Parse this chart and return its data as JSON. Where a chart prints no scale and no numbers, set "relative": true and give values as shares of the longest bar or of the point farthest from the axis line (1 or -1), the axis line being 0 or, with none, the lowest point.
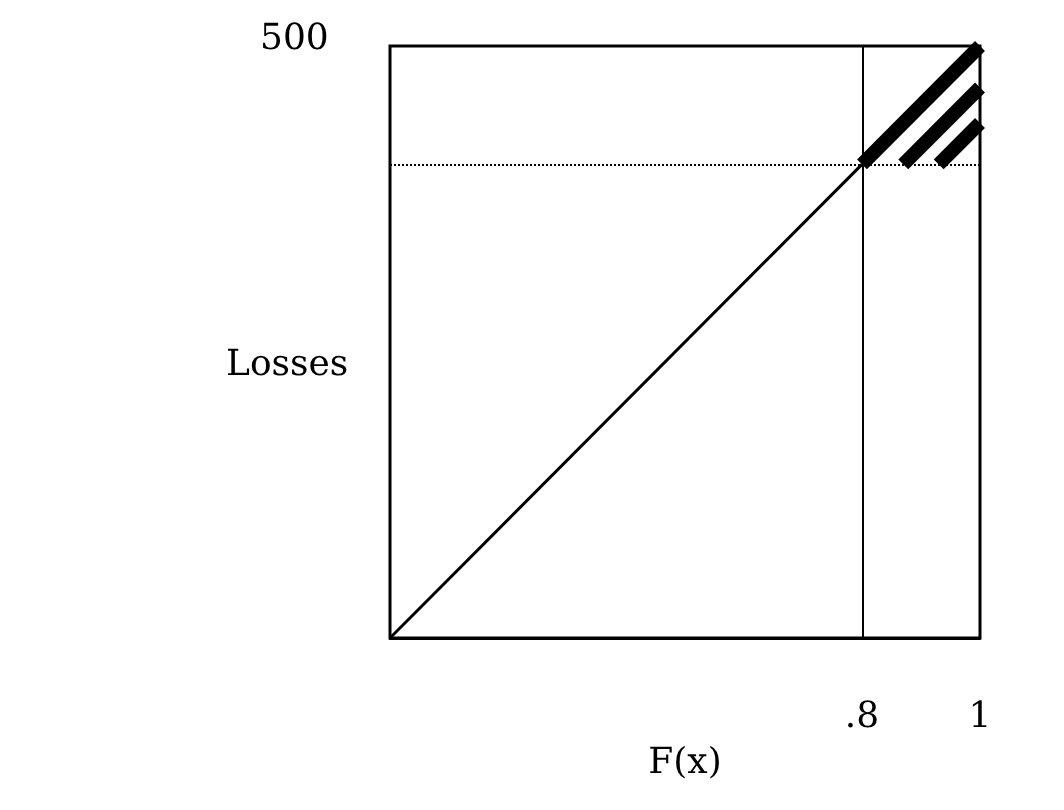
{
  "chart_data": {
    "type": "line",
    "xlabel": "F(x)",
    "ylabel": "Losses",
    "relative": true,
    "annotations": [
      "500"
    ],
    "xlim": [
      0,
      1
    ],
    "xticks": [
      {
        "value": 0.8,
        "label": ".8"
      },
      1
    ],
    "grid": false,
    "marker": "none",
    "line_style": "solid",
    "series": [
      {
        "color": "#000000",
        "x": [
          0,
          0.8
        ],
        "values": [
          0,
          0.8
        ]
      },
      {
        "color": "#000000",
        "x": [
          0.8,
          1
        ],
        "values": [
          0.8,
          1
        ]
      },
      {
        "color": "#000000",
        "x": [
          0.87,
          1
        ],
        "values": [
          0.8,
          0.93
        ]
      },
      {
        "color": "#000000",
        "x": [
          0.93,
          1
        ],
        "values": [
          0.8,
          0.87
        ]
      }
    ],
    "ref_lines": [
      {
        "axis": "x",
        "value": 0.8,
        "color": "#000000",
        "line_style": "solid"
      },
      {
        "axis": "y",
        "value": 0.8,
        "color": "#000000",
        "line_style": "dotted"
      }
    ]
  }
}
